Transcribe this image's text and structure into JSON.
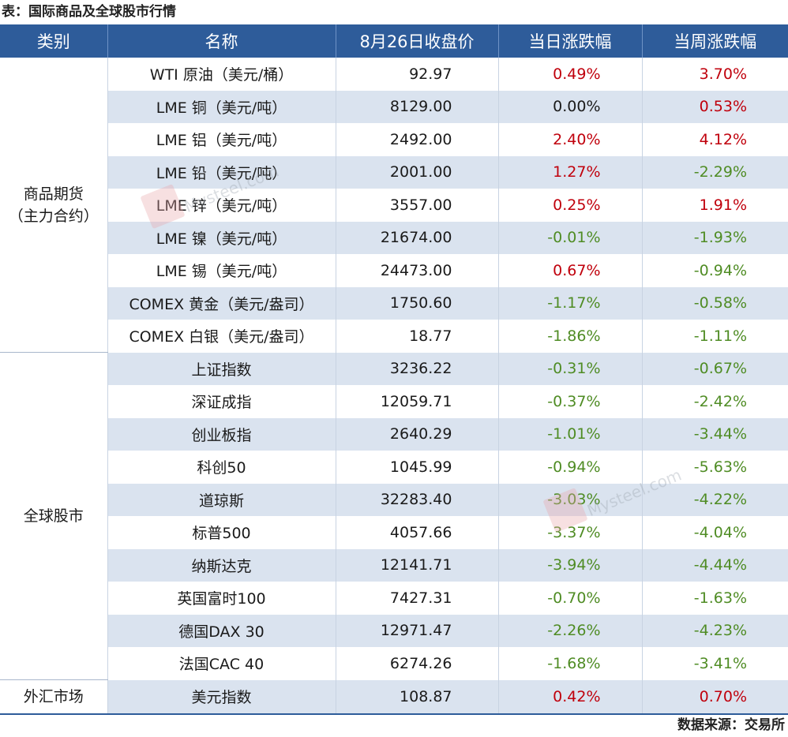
{
  "caption": "表：国际商品及全球股市行情",
  "source": "数据来源：交易所",
  "watermark_text": "Mysteel.com",
  "header": {
    "category": "类别",
    "name": "名称",
    "price": "8月26日收盘价",
    "day_change": "当日涨跌幅",
    "week_change": "当周涨跌幅"
  },
  "groups": [
    {
      "label_line1": "商品期货",
      "label_line2": "（主力合约）"
    },
    {
      "label_line1": "全球股市",
      "label_line2": ""
    },
    {
      "label_line1": "外汇市场",
      "label_line2": ""
    }
  ],
  "rows": [
    {
      "name": "WTI 原油（美元/桶）",
      "price": "92.97",
      "day": "0.49%",
      "week": "3.70%"
    },
    {
      "name": "LME 铜（美元/吨）",
      "price": "8129.00",
      "day": "0.00%",
      "week": "0.53%"
    },
    {
      "name": "LME 铝（美元/吨）",
      "price": "2492.00",
      "day": "2.40%",
      "week": "4.12%"
    },
    {
      "name": "LME 铅（美元/吨）",
      "price": "2001.00",
      "day": "1.27%",
      "week": "-2.29%"
    },
    {
      "name": "LME 锌（美元/吨）",
      "price": "3557.00",
      "day": "0.25%",
      "week": "1.91%"
    },
    {
      "name": "LME 镍（美元/吨）",
      "price": "21674.00",
      "day": "-0.01%",
      "week": "-1.93%"
    },
    {
      "name": "LME 锡（美元/吨）",
      "price": "24473.00",
      "day": "0.67%",
      "week": "-0.94%"
    },
    {
      "name": "COMEX 黄金（美元/盎司）",
      "price": "1750.60",
      "day": "-1.17%",
      "week": "-0.58%"
    },
    {
      "name": "COMEX 白银（美元/盎司）",
      "price": "18.77",
      "day": "-1.86%",
      "week": "-1.11%"
    },
    {
      "name": "上证指数",
      "price": "3236.22",
      "day": "-0.31%",
      "week": "-0.67%"
    },
    {
      "name": "深证成指",
      "price": "12059.71",
      "day": "-0.37%",
      "week": "-2.42%"
    },
    {
      "name": "创业板指",
      "price": "2640.29",
      "day": "-1.01%",
      "week": "-3.44%"
    },
    {
      "name": "科创50",
      "price": "1045.99",
      "day": "-0.94%",
      "week": "-5.63%"
    },
    {
      "name": "道琼斯",
      "price": "32283.40",
      "day": "-3.03%",
      "week": "-4.22%"
    },
    {
      "name": "标普500",
      "price": "4057.66",
      "day": "-3.37%",
      "week": "-4.04%"
    },
    {
      "name": "纳斯达克",
      "price": "12141.71",
      "day": "-3.94%",
      "week": "-4.44%"
    },
    {
      "name": "英国富时100",
      "price": "7427.31",
      "day": "-0.70%",
      "week": "-1.63%"
    },
    {
      "name": "德国DAX 30",
      "price": "12971.47",
      "day": "-2.26%",
      "week": "-4.23%"
    },
    {
      "name": "法国CAC 40",
      "price": "6274.26",
      "day": "-1.68%",
      "week": "-3.41%"
    },
    {
      "name": "美元指数",
      "price": "108.87",
      "day": "0.42%",
      "week": "0.70%"
    }
  ],
  "colors": {
    "header_bg": "#2e5c9a",
    "stripe": "#dae3ef",
    "positive": "#c0000c",
    "negative": "#4f8c24"
  }
}
